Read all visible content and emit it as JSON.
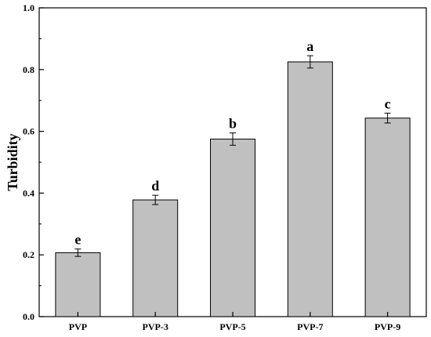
{
  "chart_data": {
    "type": "bar",
    "categories": [
      "PVP",
      "PVP-3",
      "PVP-5",
      "PVP-7",
      "PVP-9"
    ],
    "values": [
      0.207,
      0.378,
      0.575,
      0.825,
      0.643
    ],
    "errors": [
      0.012,
      0.015,
      0.02,
      0.02,
      0.016
    ],
    "significance_letters": [
      "e",
      "d",
      "b",
      "a",
      "c"
    ],
    "title": "",
    "xlabel": "",
    "ylabel": "Turbidity",
    "ylim": [
      0.0,
      1.0
    ],
    "yticks": [
      "0.0",
      "0.2",
      "0.4",
      "0.6",
      "0.8",
      "1.0"
    ],
    "grid": false,
    "bar_color": "#c0c0c0",
    "edge_color": "#000000"
  }
}
